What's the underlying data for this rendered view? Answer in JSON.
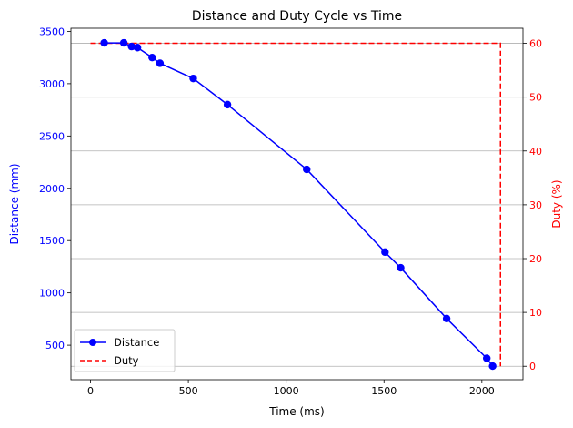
{
  "chart_data": {
    "type": "line",
    "title": "Distance and Duty Cycle vs Time",
    "xlabel": "Time (ms)",
    "ylabel_left": "Distance (mm)",
    "ylabel_right": "Duty (%)",
    "xlim": [
      -100,
      2210
    ],
    "ylim_left": [
      170,
      3530
    ],
    "ylim_right": [
      -2.5,
      62.8
    ],
    "x_ticks": [
      0,
      500,
      1000,
      1500,
      2000
    ],
    "y_ticks_left": [
      500,
      1000,
      1500,
      2000,
      2500,
      3000,
      3500
    ],
    "y_ticks_right": [
      0,
      10,
      20,
      30,
      40,
      50,
      60
    ],
    "grid": "horizontal-right-axis",
    "legend_position": "lower-left",
    "series": [
      {
        "name": "Distance",
        "axis": "left",
        "color": "#0000ff",
        "style": "solid-markers",
        "x": [
          70,
          170,
          210,
          240,
          315,
          355,
          525,
          700,
          1105,
          1505,
          1585,
          1820,
          2025,
          2055
        ],
        "y": [
          3390,
          3390,
          3355,
          3345,
          3250,
          3195,
          3050,
          2800,
          2180,
          1390,
          1240,
          755,
          375,
          300
        ]
      },
      {
        "name": "Duty",
        "axis": "right",
        "color": "#ff0000",
        "style": "dashed",
        "x": [
          0,
          2095,
          2095
        ],
        "y": [
          60,
          60,
          0
        ]
      }
    ]
  }
}
